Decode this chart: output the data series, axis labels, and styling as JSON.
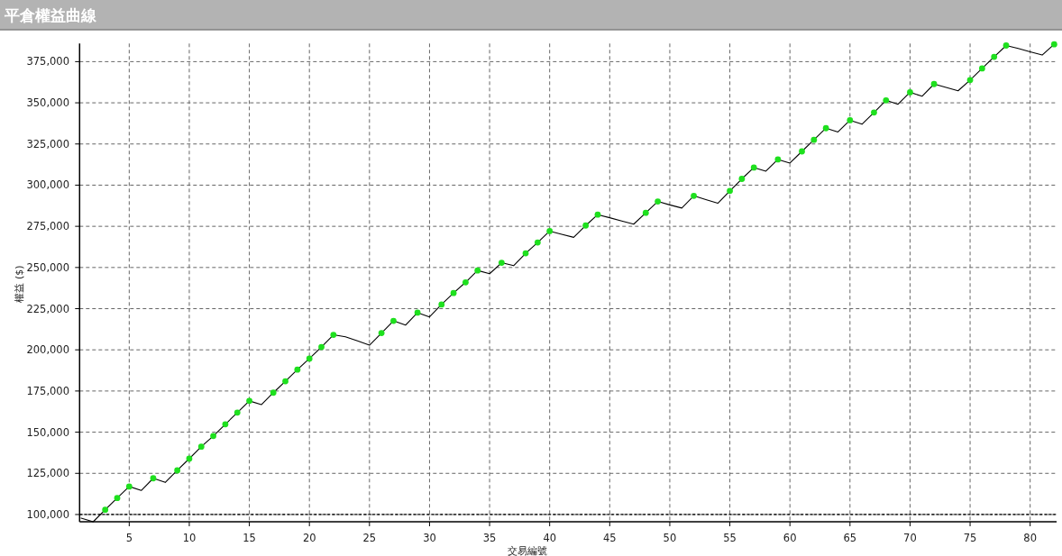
{
  "chart_data": {
    "type": "line",
    "title": "平倉權益曲線",
    "xlabel": "交易編號",
    "ylabel": "權益 ($)",
    "xlim": [
      0.87,
      82.2
    ],
    "ylim": [
      95600,
      386000
    ],
    "xticks": [
      5,
      10,
      15,
      20,
      25,
      30,
      35,
      40,
      45,
      50,
      55,
      60,
      65,
      70,
      75,
      80
    ],
    "yticks": [
      {
        "value": 100000,
        "label": "100,000"
      },
      {
        "value": 125000,
        "label": "125,000"
      },
      {
        "value": 150000,
        "label": "150,000"
      },
      {
        "value": 175000,
        "label": "175,000"
      },
      {
        "value": 200000,
        "label": "200,000"
      },
      {
        "value": 225000,
        "label": "225,000"
      },
      {
        "value": 250000,
        "label": "250,000"
      },
      {
        "value": 275000,
        "label": "275,000"
      },
      {
        "value": 300000,
        "label": "300,000"
      },
      {
        "value": 325000,
        "label": "325,000"
      },
      {
        "value": 350000,
        "label": "350,000"
      },
      {
        "value": 375000,
        "label": "375,000"
      }
    ],
    "grid": true,
    "ref_lines": [
      {
        "axis": "y",
        "value": 100000,
        "color": "#000000",
        "line_style": "dashed"
      }
    ],
    "series": [
      {
        "color": "#000000",
        "marker": "none",
        "line_style": "solid",
        "x": [
          1,
          2,
          3,
          4,
          5,
          6,
          7,
          8,
          9,
          10,
          11,
          12,
          13,
          14,
          15,
          16,
          17,
          18,
          19,
          20,
          21,
          22,
          23,
          24,
          25,
          26,
          27,
          28,
          29,
          30,
          31,
          32,
          33,
          34,
          35,
          36,
          37,
          38,
          39,
          40,
          41,
          42,
          43,
          44,
          45,
          46,
          47,
          48,
          49,
          50,
          51,
          52,
          53,
          54,
          55,
          56,
          57,
          58,
          59,
          60,
          61,
          62,
          63,
          64,
          65,
          66,
          67,
          68,
          69,
          70,
          71,
          72,
          73,
          74,
          75,
          76,
          77,
          78,
          79,
          80,
          81,
          82
        ],
        "values": [
          97800,
          95600,
          102900,
          110000,
          117000,
          114600,
          122000,
          119500,
          126800,
          133900,
          141200,
          147700,
          154800,
          161900,
          169000,
          166700,
          174000,
          180900,
          188000,
          194700,
          201700,
          209100,
          207900,
          205400,
          202800,
          210200,
          217600,
          215000,
          222600,
          220000,
          227500,
          234500,
          241000,
          248200,
          246200,
          252900,
          251100,
          258600,
          265200,
          272100,
          270200,
          268300,
          275500,
          282100,
          280200,
          278200,
          276300,
          283200,
          290100,
          288000,
          286100,
          293500,
          291200,
          289000,
          296500,
          303800,
          310700,
          308500,
          315600,
          313400,
          320500,
          327500,
          334600,
          332300,
          339400,
          337000,
          344100,
          351500,
          349100,
          356400,
          354000,
          361400,
          359400,
          357300,
          363800,
          370900,
          377900,
          384800,
          383000,
          381000,
          379000,
          385500
        ]
      },
      {
        "type": "scatter",
        "color": "#1ee01e",
        "marker": "circle",
        "x": [
          3,
          4,
          5,
          7,
          9,
          10,
          11,
          12,
          13,
          14,
          15,
          17,
          18,
          19,
          20,
          21,
          22,
          26,
          27,
          29,
          31,
          32,
          33,
          34,
          36,
          38,
          39,
          40,
          43,
          44,
          48,
          49,
          52,
          55,
          56,
          57,
          59,
          61,
          62,
          63,
          65,
          67,
          68,
          70,
          72,
          75,
          76,
          77,
          78,
          82
        ],
        "values": [
          102900,
          110000,
          117000,
          122000,
          126800,
          133900,
          141200,
          147700,
          154800,
          161900,
          169000,
          174000,
          180900,
          188000,
          194700,
          201700,
          209100,
          210200,
          217600,
          222600,
          227500,
          234500,
          241000,
          248200,
          252900,
          258600,
          265200,
          272100,
          275500,
          282100,
          283200,
          290100,
          293500,
          296500,
          303800,
          310700,
          315600,
          320500,
          327500,
          334600,
          339400,
          344100,
          351500,
          356400,
          361400,
          363800,
          370900,
          377900,
          384800,
          385500
        ]
      }
    ]
  }
}
